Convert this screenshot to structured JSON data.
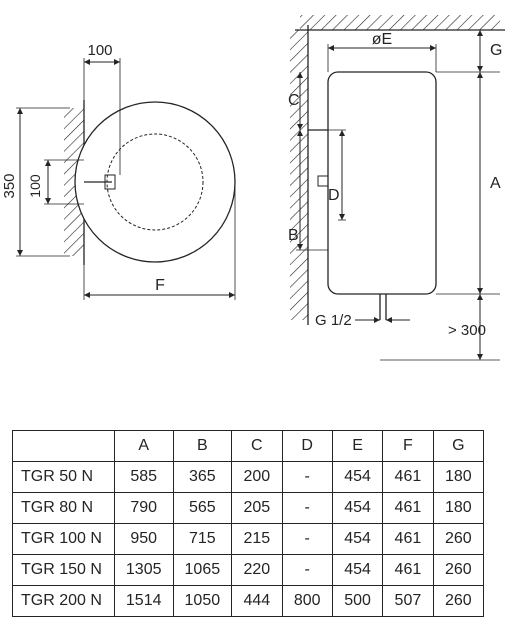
{
  "diagram": {
    "stroke": "#222426",
    "stroke_width": 1.3,
    "hatch_color": "#222426",
    "top_view": {
      "dim_100_top": "100",
      "dim_100_inner": "100",
      "dim_350": "350",
      "dim_F": "F"
    },
    "side_view": {
      "dim_oE": "øE",
      "dim_G": "G",
      "dim_C": "C",
      "dim_D": "D",
      "dim_B": "B",
      "dim_A": "A",
      "dim_G12": "G 1/2",
      "dim_300": "> 300"
    }
  },
  "table": {
    "headers": [
      "",
      "A",
      "B",
      "C",
      "D",
      "E",
      "F",
      "G"
    ],
    "rows": [
      [
        "TGR 50 N",
        "585",
        "365",
        "200",
        "-",
        "454",
        "461",
        "180"
      ],
      [
        "TGR 80 N",
        "790",
        "565",
        "205",
        "-",
        "454",
        "461",
        "180"
      ],
      [
        "TGR 100 N",
        "950",
        "715",
        "215",
        "-",
        "454",
        "461",
        "260"
      ],
      [
        "TGR 150 N",
        "1305",
        "1065",
        "220",
        "-",
        "454",
        "461",
        "260"
      ],
      [
        "TGR 200 N",
        "1514",
        "1050",
        "444",
        "800",
        "500",
        "507",
        "260"
      ]
    ]
  }
}
